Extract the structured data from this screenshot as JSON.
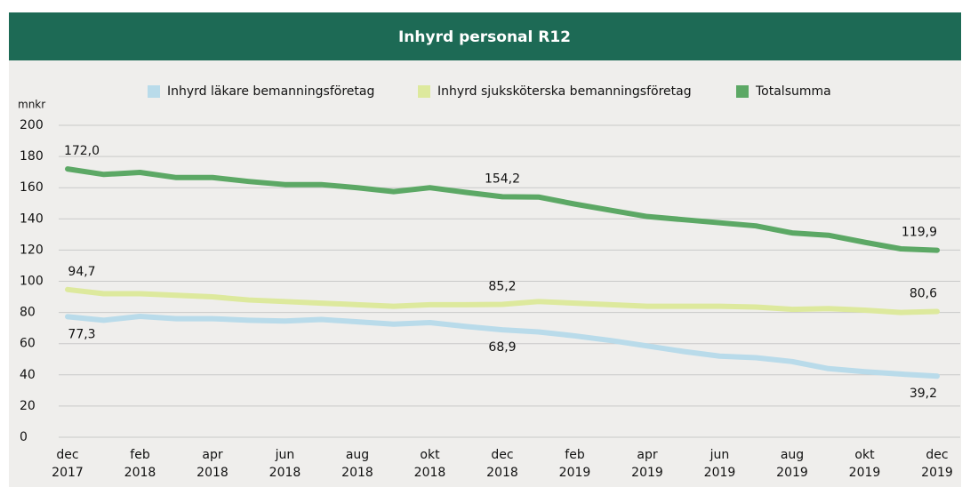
{
  "chart_data": {
    "type": "line",
    "title": "Inhyrd personal R12",
    "y_label": "mnkr",
    "categories": [
      "dec 2017",
      null,
      "feb 2018",
      null,
      "apr 2018",
      null,
      "jun 2018",
      null,
      "aug 2018",
      null,
      "okt 2018",
      null,
      "dec 2018",
      null,
      "feb 2019",
      null,
      "apr 2019",
      null,
      "jun 2019",
      null,
      "aug 2019",
      null,
      "okt 2019",
      null,
      "dec 2019"
    ],
    "series": [
      {
        "name": "Inhyrd läkare bemanningsföretag",
        "color": "#b9dbea",
        "label_side": "below",
        "values": [
          77.3,
          75,
          77.5,
          76,
          76,
          75,
          74.5,
          75.5,
          74,
          72.5,
          73.5,
          71,
          68.9,
          67.5,
          65,
          62,
          58.5,
          55,
          52,
          51,
          48.5,
          44,
          42,
          40.5,
          39.2
        ],
        "value_labels": [
          "77,3",
          null,
          null,
          null,
          null,
          null,
          null,
          null,
          null,
          null,
          null,
          null,
          "68,9",
          null,
          null,
          null,
          null,
          null,
          null,
          null,
          null,
          null,
          null,
          null,
          "39,2"
        ]
      },
      {
        "name": "Inhyrd sjuksköterska bemanningsföretag",
        "color": "#dde99d",
        "label_side": "above",
        "values": [
          94.7,
          92,
          92,
          91,
          90,
          88,
          87,
          86,
          85,
          84,
          85,
          85,
          85.2,
          87,
          86,
          85,
          84,
          84,
          84,
          83.5,
          82,
          82.5,
          81.5,
          80,
          80.6
        ],
        "value_labels": [
          "94,7",
          null,
          null,
          null,
          null,
          null,
          null,
          null,
          null,
          null,
          null,
          null,
          "85,2",
          null,
          null,
          null,
          null,
          null,
          null,
          null,
          null,
          null,
          null,
          null,
          "80,6"
        ]
      },
      {
        "name": "Totalsumma",
        "color": "#5ca865",
        "label_side": "above",
        "values": [
          172.0,
          168.5,
          169.8,
          166.5,
          166.5,
          164,
          162,
          162,
          160,
          157.5,
          160,
          157,
          154.2,
          154,
          149.5,
          145.5,
          141.5,
          139.5,
          137.5,
          135.5,
          131,
          129.5,
          125,
          120.8,
          119.9
        ],
        "value_labels": [
          "172,0",
          null,
          null,
          null,
          null,
          null,
          null,
          null,
          null,
          null,
          null,
          null,
          "154,2",
          null,
          null,
          null,
          null,
          null,
          null,
          null,
          null,
          null,
          null,
          null,
          "119,9"
        ]
      }
    ],
    "ylim": [
      0,
      200
    ],
    "yticks": [
      0,
      20,
      40,
      60,
      80,
      100,
      120,
      140,
      160,
      180,
      200
    ],
    "grid": true,
    "legend": "top"
  }
}
